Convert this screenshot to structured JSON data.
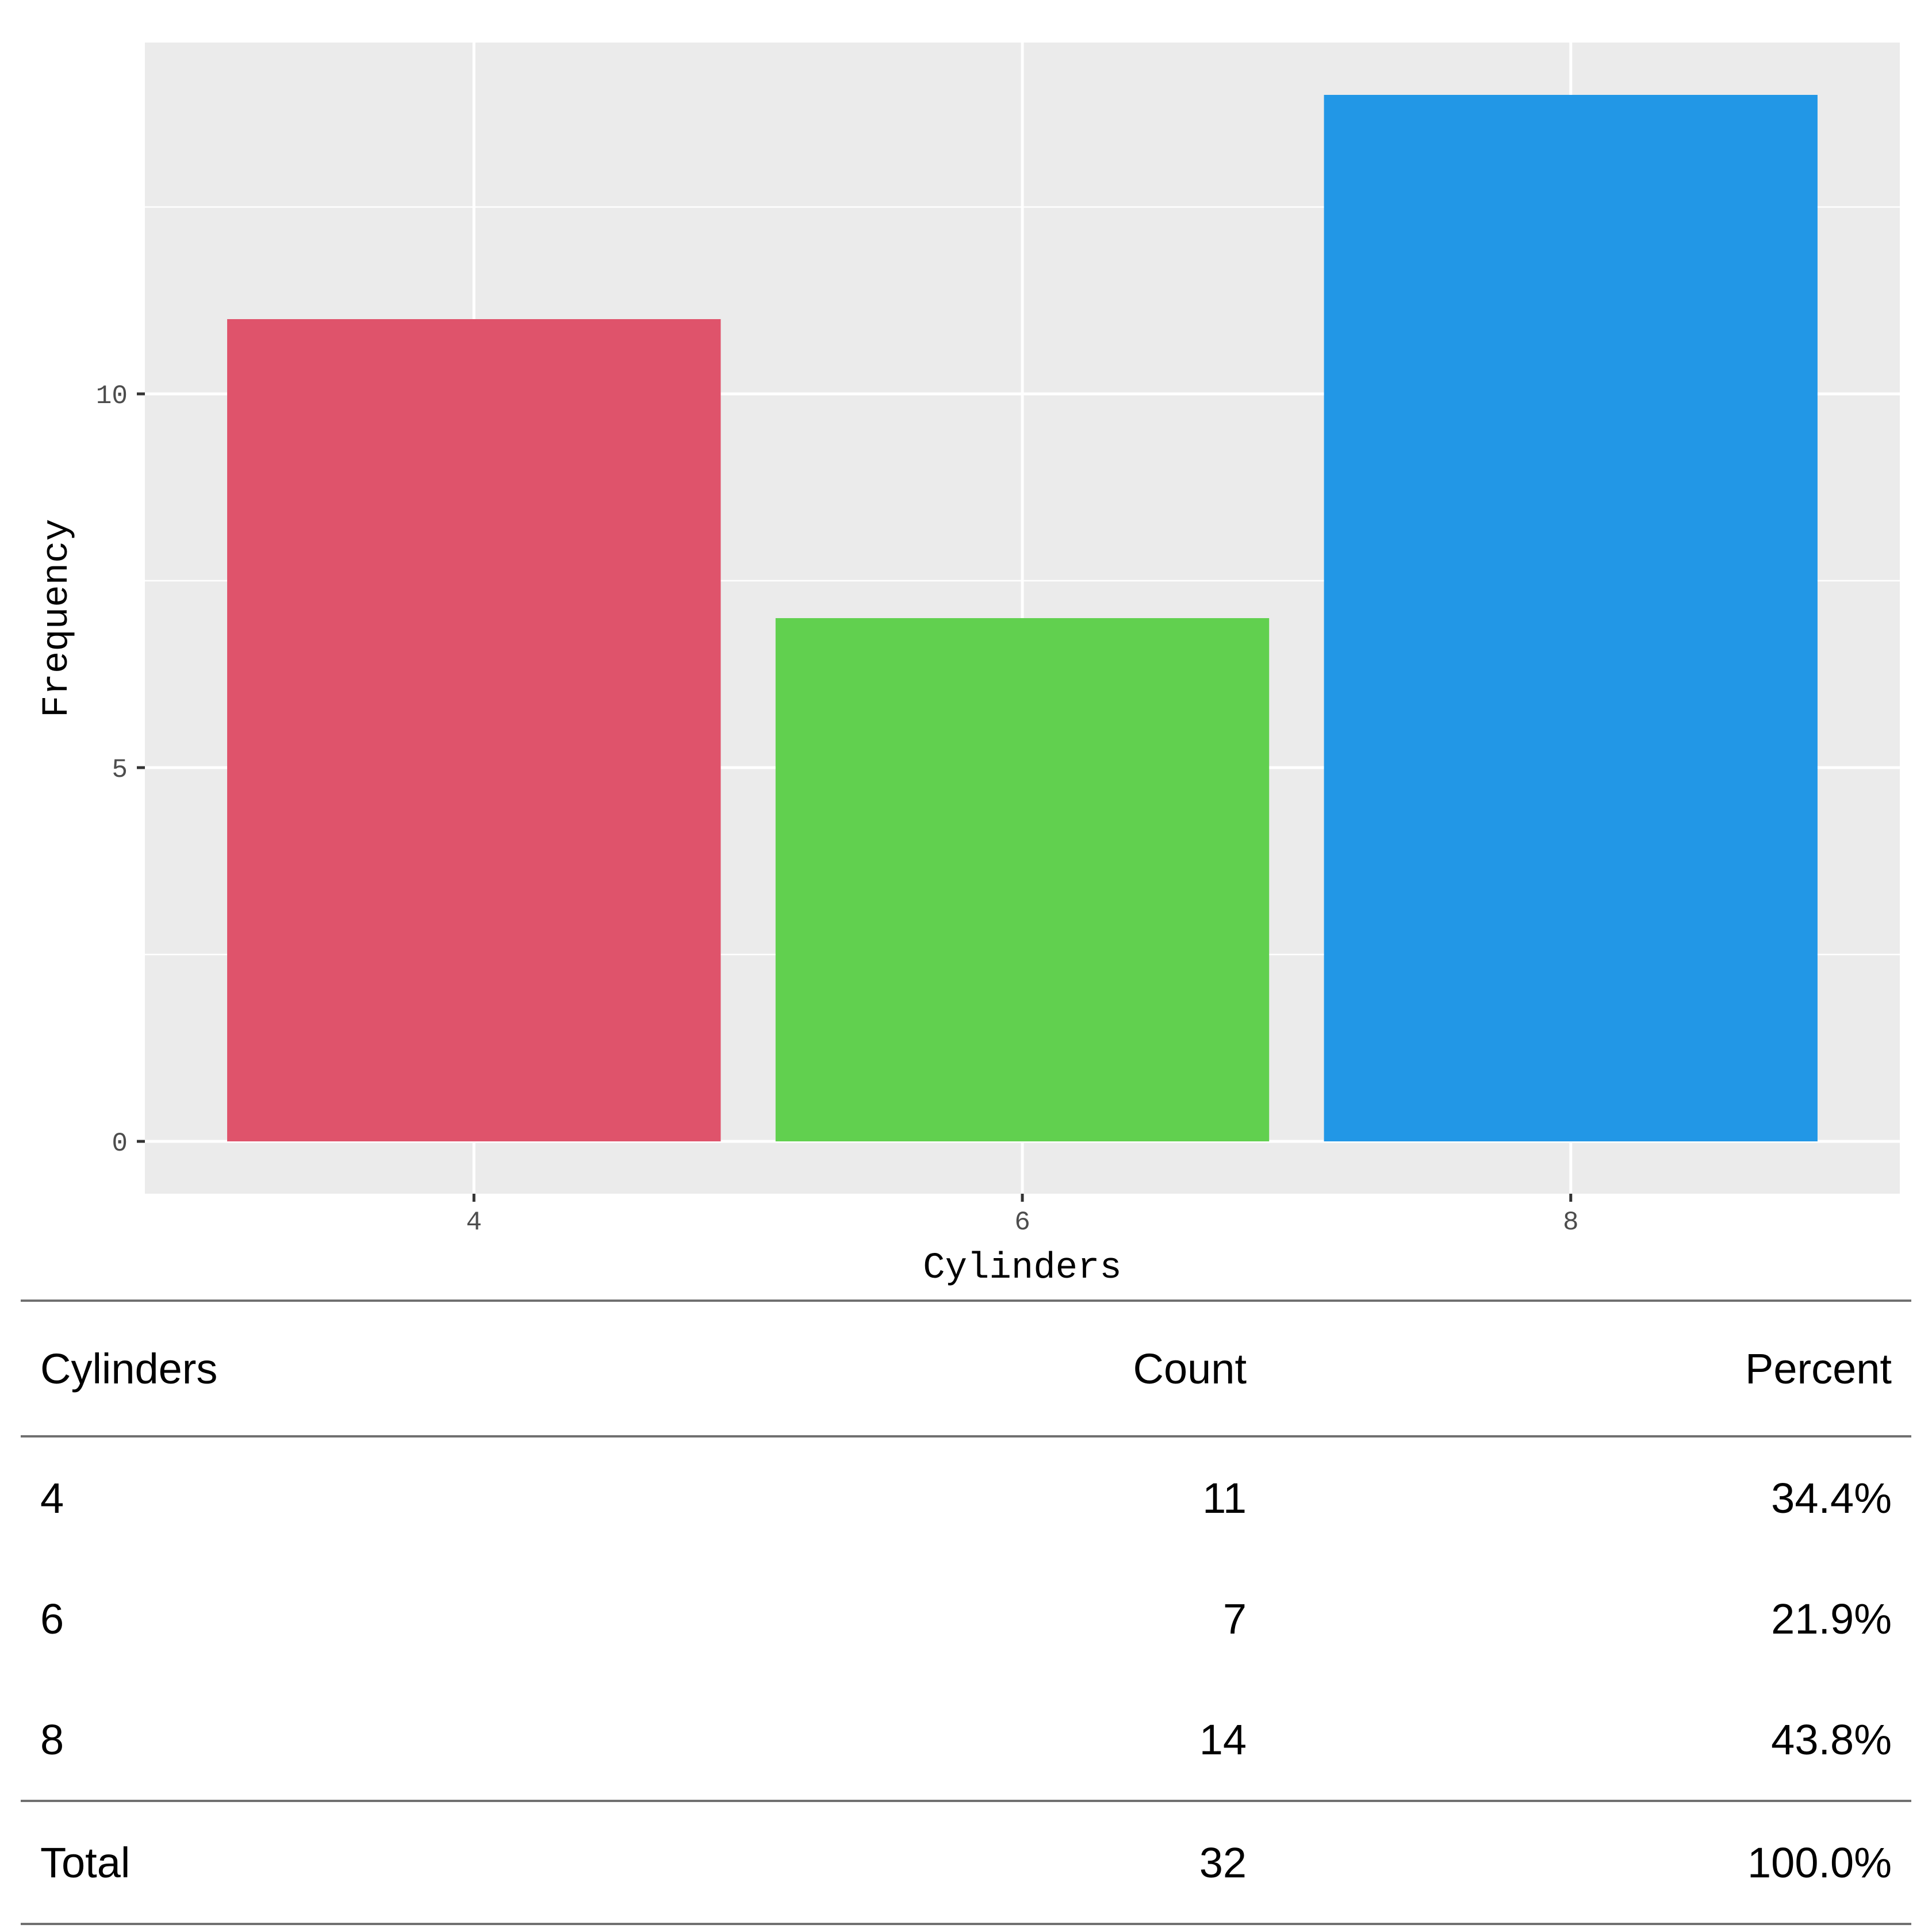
{
  "chart_data": {
    "type": "bar",
    "categories": [
      "4",
      "6",
      "8"
    ],
    "values": [
      11,
      7,
      14
    ],
    "colors": [
      "#DF536B",
      "#61D04F",
      "#2297E6"
    ],
    "title": "",
    "xlabel": "Cylinders",
    "ylabel": "Frequency",
    "ylim": [
      -0.7,
      14.7
    ],
    "yticks": [
      0,
      5,
      10
    ],
    "ytick_labels": [
      "0",
      "5",
      "10"
    ],
    "grid": true,
    "panel_background": "#EBEBEB",
    "grid_color": "#FFFFFF"
  },
  "table": {
    "headers": [
      "Cylinders",
      "Count",
      "Percent"
    ],
    "rows": [
      [
        "4",
        "11",
        "34.4%"
      ],
      [
        "6",
        "7",
        "21.9%"
      ],
      [
        "8",
        "14",
        "43.8%"
      ]
    ],
    "total": [
      "Total",
      "32",
      "100.0%"
    ]
  }
}
